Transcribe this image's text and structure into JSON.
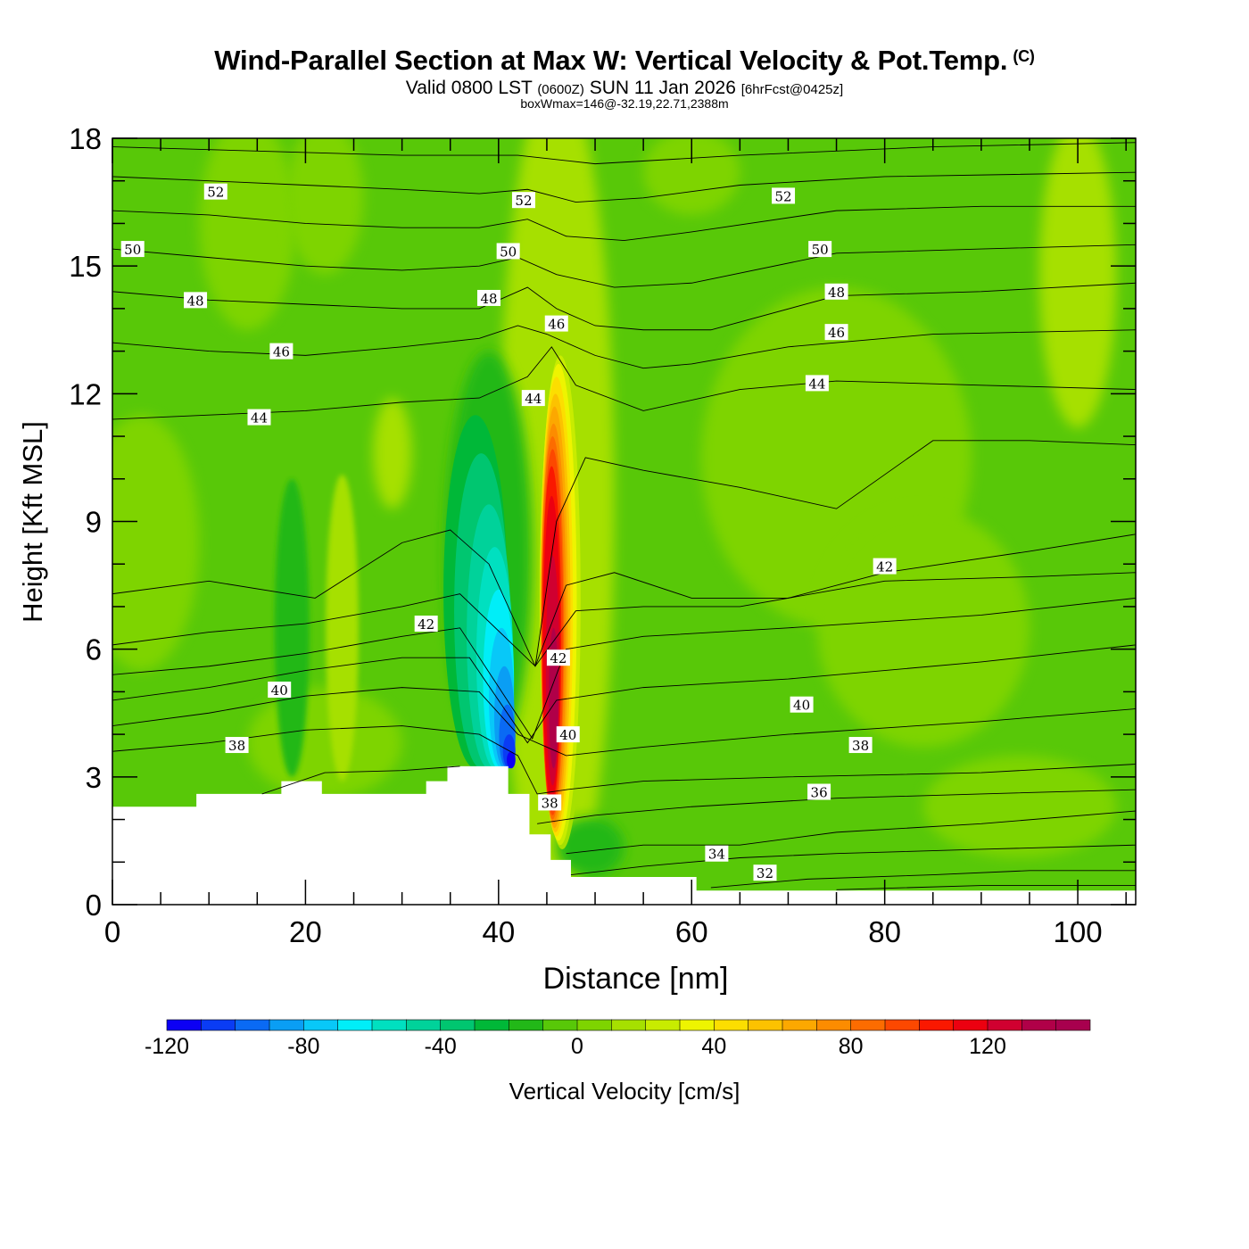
{
  "title": {
    "main": "Wind-Parallel Section at Max W: Vertical Velocity & Pot.Temp.",
    "copyright": "(C)",
    "valid_prefix": "Valid 0800 LST",
    "valid_utc": "(0600Z)",
    "valid_date": "SUN 11 Jan 2026",
    "forecast": "[6hrFcst@0425z]",
    "boxwmax": "boxWmax=146@-32.19,22.71,2388m"
  },
  "chart_data": {
    "type": "contour-section",
    "xlabel": "Distance [nm]",
    "ylabel": "Height [Kft MSL]",
    "xlim": [
      0,
      106
    ],
    "ylim": [
      0,
      18
    ],
    "x_ticks": [
      0,
      20,
      40,
      60,
      80,
      100
    ],
    "y_ticks": [
      0,
      3,
      6,
      9,
      12,
      15,
      18
    ],
    "colorbar": {
      "label": "Vertical Velocity [cm/s]",
      "range": [
        -120,
        150
      ],
      "step": 10,
      "tick_values": [
        -120,
        -80,
        -40,
        0,
        40,
        80,
        120
      ],
      "colors": [
        "#0c00f4",
        "#0a3cf4",
        "#0a6af4",
        "#0a9ef4",
        "#08c8f8",
        "#00eef8",
        "#00e0c0",
        "#00d29a",
        "#00c670",
        "#00b838",
        "#22b818",
        "#58c808",
        "#7ed400",
        "#a6e000",
        "#c8ec00",
        "#eef400",
        "#fcde00",
        "#fcc200",
        "#fca800",
        "#fc8c00",
        "#fc6c00",
        "#fc4800",
        "#fa1800",
        "#ec0010",
        "#d00030",
        "#b00048"
      ]
    },
    "w_max_cms": 146,
    "w_min_cms": -120,
    "terrain_kft": [
      [
        0,
        2.3
      ],
      [
        8.7,
        2.3
      ],
      [
        8.7,
        2.6
      ],
      [
        17.5,
        2.6
      ],
      [
        17.5,
        2.9
      ],
      [
        21.7,
        2.9
      ],
      [
        21.7,
        2.6
      ],
      [
        32.5,
        2.6
      ],
      [
        32.5,
        2.9
      ],
      [
        34.7,
        2.9
      ],
      [
        34.7,
        3.25
      ],
      [
        41,
        3.25
      ],
      [
        41,
        2.6
      ],
      [
        43.2,
        2.6
      ],
      [
        43.2,
        1.65
      ],
      [
        45.4,
        1.65
      ],
      [
        45.4,
        1.05
      ],
      [
        47.5,
        1.05
      ],
      [
        47.5,
        0.65
      ],
      [
        60.5,
        0.65
      ],
      [
        60.5,
        0.33
      ],
      [
        106,
        0.33
      ]
    ],
    "theta_contours": [
      {
        "label": "32",
        "pos": [
          67.6,
          0.75
        ]
      },
      {
        "label": "34",
        "pos": [
          62.6,
          1.2
        ]
      },
      {
        "label": "36",
        "pos": [
          73.2,
          2.65
        ]
      },
      {
        "label": "38",
        "pos": [
          12.9,
          3.75
        ]
      },
      {
        "label": "38",
        "pos": [
          45.3,
          2.4
        ]
      },
      {
        "label": "38",
        "pos": [
          77.5,
          3.75
        ]
      },
      {
        "label": "40",
        "pos": [
          17.3,
          5.05
        ]
      },
      {
        "label": "40",
        "pos": [
          47.2,
          4.0
        ]
      },
      {
        "label": "40",
        "pos": [
          71.4,
          4.7
        ]
      },
      {
        "label": "42",
        "pos": [
          32.5,
          6.6
        ]
      },
      {
        "label": "42",
        "pos": [
          46.2,
          5.8
        ]
      },
      {
        "label": "42",
        "pos": [
          80.0,
          7.95
        ]
      },
      {
        "label": "44",
        "pos": [
          15.2,
          11.45
        ]
      },
      {
        "label": "44",
        "pos": [
          43.6,
          11.9
        ]
      },
      {
        "label": "44",
        "pos": [
          73.0,
          12.25
        ]
      },
      {
        "label": "46",
        "pos": [
          17.5,
          13.0
        ]
      },
      {
        "label": "46",
        "pos": [
          46.0,
          13.65
        ]
      },
      {
        "label": "46",
        "pos": [
          75.0,
          13.45
        ]
      },
      {
        "label": "48",
        "pos": [
          8.6,
          14.2
        ]
      },
      {
        "label": "48",
        "pos": [
          39.0,
          14.25
        ]
      },
      {
        "label": "48",
        "pos": [
          75.0,
          14.4
        ]
      },
      {
        "label": "50",
        "pos": [
          2.1,
          15.4
        ]
      },
      {
        "label": "50",
        "pos": [
          41.0,
          15.35
        ]
      },
      {
        "label": "50",
        "pos": [
          73.3,
          15.4
        ]
      },
      {
        "label": "52",
        "pos": [
          10.7,
          16.75
        ]
      },
      {
        "label": "52",
        "pos": [
          42.6,
          16.55
        ]
      },
      {
        "label": "52",
        "pos": [
          69.5,
          16.65
        ]
      }
    ]
  }
}
